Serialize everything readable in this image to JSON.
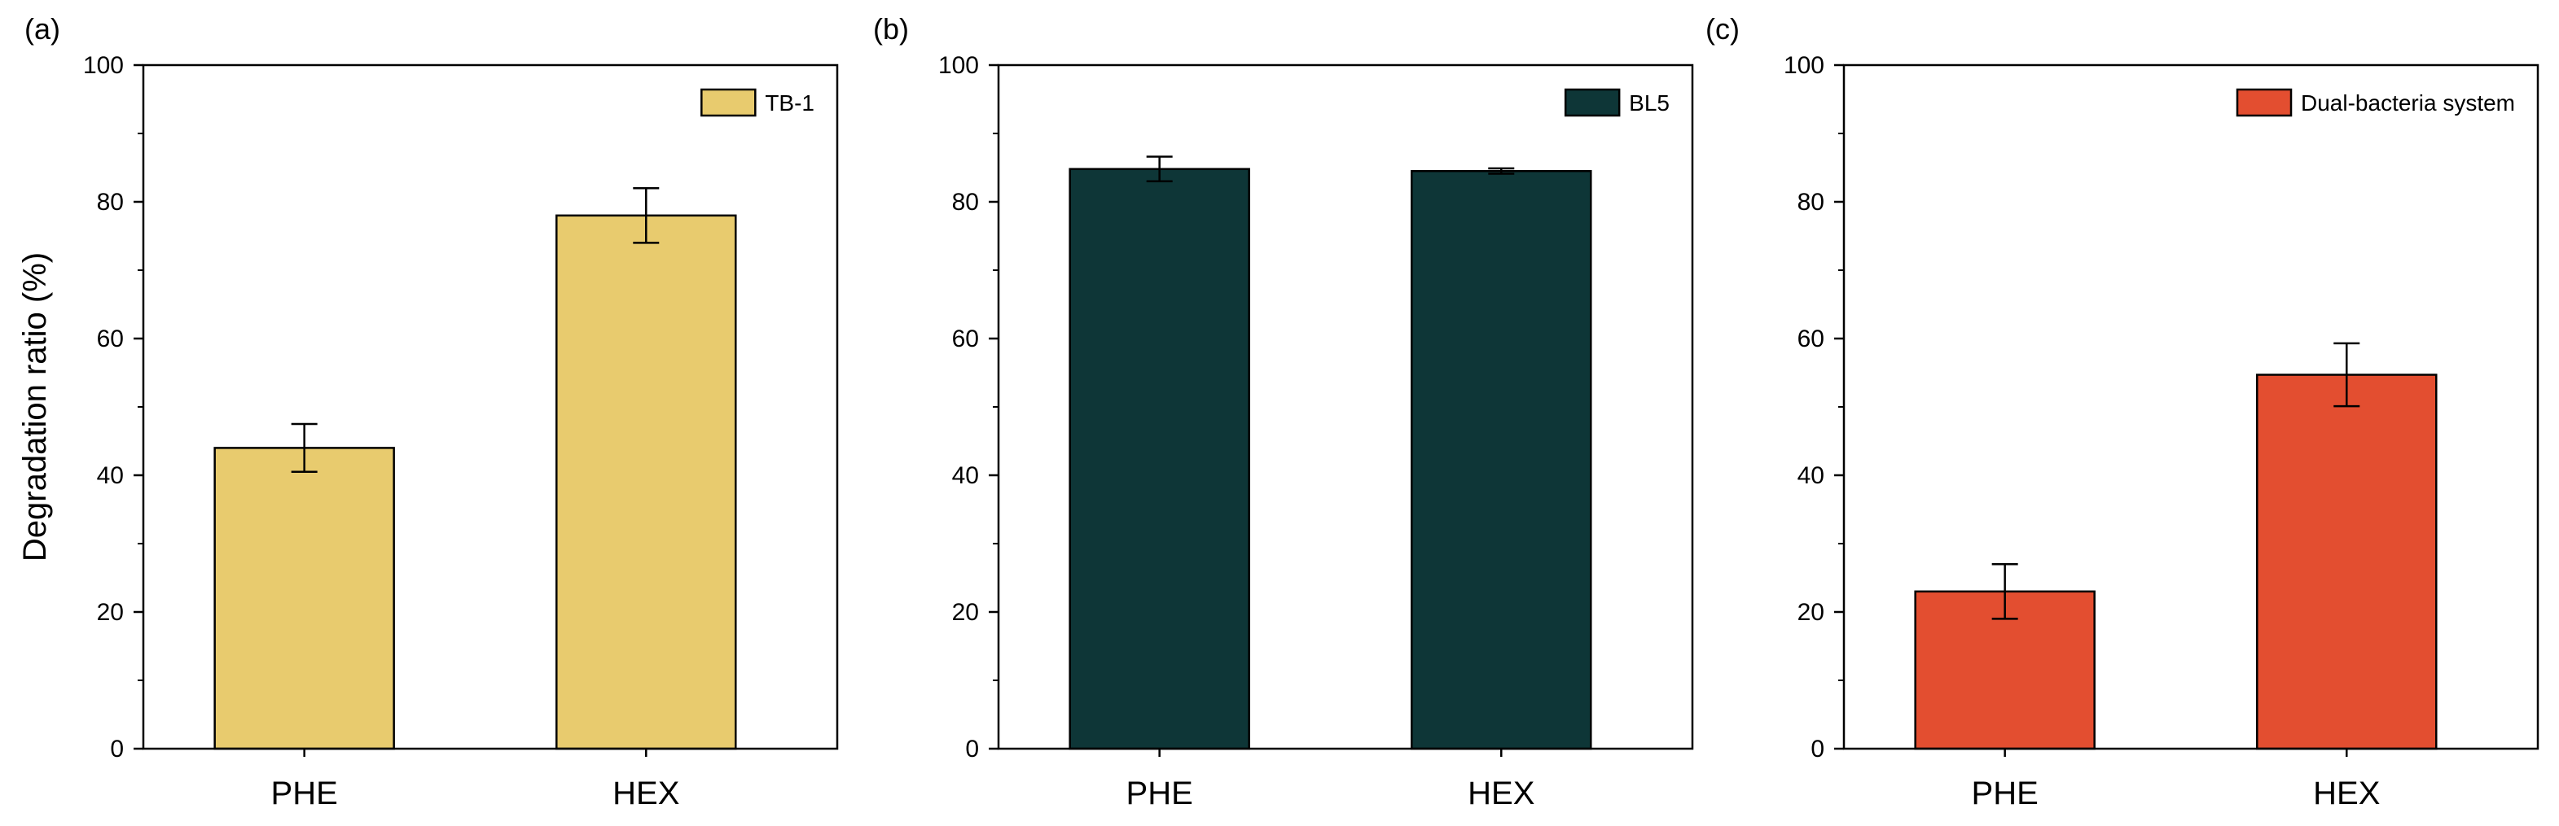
{
  "chart_data": [
    {
      "type": "bar",
      "panel_label": "(a)",
      "categories": [
        "PHE",
        "HEX"
      ],
      "series": [
        {
          "name": "TB-1",
          "color": "#E8CB6E",
          "values": [
            44,
            78
          ],
          "errors": [
            3.5,
            4
          ]
        }
      ],
      "xlabel": "",
      "ylabel": "Degradation ratio (%)",
      "ylim": [
        0,
        100
      ],
      "yticks": [
        "0",
        "20",
        "40",
        "60",
        "80",
        "100"
      ],
      "grid": false,
      "legend_position": "top-right"
    },
    {
      "type": "bar",
      "panel_label": "(b)",
      "categories": [
        "PHE",
        "HEX"
      ],
      "series": [
        {
          "name": "BL5",
          "color": "#0E3637",
          "values": [
            84.8,
            84.5
          ],
          "errors": [
            1.8,
            0.4
          ]
        }
      ],
      "xlabel": "",
      "ylabel": "",
      "ylim": [
        0,
        100
      ],
      "yticks": [
        "0",
        "20",
        "40",
        "60",
        "80",
        "100"
      ],
      "grid": false,
      "legend_position": "top-right"
    },
    {
      "type": "bar",
      "panel_label": "(c)",
      "categories": [
        "PHE",
        "HEX"
      ],
      "series": [
        {
          "name": "Dual-bacteria system",
          "color": "#E34E30",
          "values": [
            23,
            54.7
          ],
          "errors": [
            4,
            4.6
          ]
        }
      ],
      "xlabel": "",
      "ylabel": "",
      "ylim": [
        0,
        100
      ],
      "yticks": [
        "0",
        "20",
        "40",
        "60",
        "80",
        "100"
      ],
      "grid": false,
      "legend_position": "top-right"
    }
  ]
}
